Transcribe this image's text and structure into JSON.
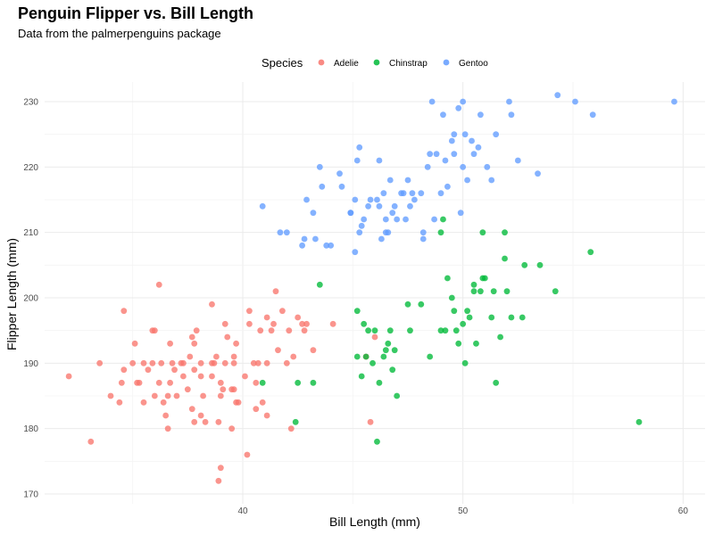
{
  "chart_data": {
    "type": "scatter",
    "title": "Penguin Flipper vs. Bill Length",
    "subtitle": "Data from the palmerpenguins package",
    "xlabel": "Bill Length (mm)",
    "ylabel": "Flipper Length (mm)",
    "xlim": [
      31,
      61
    ],
    "ylim": [
      168.5,
      233
    ],
    "x_ticks": [
      40,
      50,
      60
    ],
    "y_ticks": [
      170,
      180,
      190,
      200,
      210,
      220,
      230
    ],
    "grid": true,
    "legend": {
      "title": "Species",
      "position": "top"
    },
    "colors": {
      "Adelie": "#F8766D",
      "Chinstrap": "#00BA38",
      "Gentoo": "#619CFF"
    },
    "series": [
      {
        "name": "Adelie",
        "points": [
          [
            32.1,
            188
          ],
          [
            33.1,
            178
          ],
          [
            33.5,
            190
          ],
          [
            34.0,
            185
          ],
          [
            34.4,
            184
          ],
          [
            34.5,
            187
          ],
          [
            34.6,
            198
          ],
          [
            34.6,
            189
          ],
          [
            35.0,
            190
          ],
          [
            35.1,
            193
          ],
          [
            35.2,
            187
          ],
          [
            35.3,
            187
          ],
          [
            35.5,
            190
          ],
          [
            35.5,
            184
          ],
          [
            35.7,
            189
          ],
          [
            35.9,
            190
          ],
          [
            35.9,
            195
          ],
          [
            36.0,
            195
          ],
          [
            36.0,
            185
          ],
          [
            36.2,
            187
          ],
          [
            36.2,
            202
          ],
          [
            36.3,
            190
          ],
          [
            36.4,
            184
          ],
          [
            36.5,
            182
          ],
          [
            36.6,
            185
          ],
          [
            36.6,
            180
          ],
          [
            36.7,
            187
          ],
          [
            36.7,
            193
          ],
          [
            36.8,
            190
          ],
          [
            36.9,
            189
          ],
          [
            37.0,
            185
          ],
          [
            37.2,
            190
          ],
          [
            37.3,
            190
          ],
          [
            37.3,
            188
          ],
          [
            37.5,
            186
          ],
          [
            37.6,
            191
          ],
          [
            37.7,
            183
          ],
          [
            37.7,
            194
          ],
          [
            37.8,
            193
          ],
          [
            37.8,
            181
          ],
          [
            37.8,
            189
          ],
          [
            37.9,
            195
          ],
          [
            38.1,
            182
          ],
          [
            38.1,
            188
          ],
          [
            38.1,
            190
          ],
          [
            38.2,
            185
          ],
          [
            38.3,
            181
          ],
          [
            38.6,
            188
          ],
          [
            38.6,
            190
          ],
          [
            38.6,
            199
          ],
          [
            38.7,
            190
          ],
          [
            38.8,
            191
          ],
          [
            38.9,
            181
          ],
          [
            39.0,
            187
          ],
          [
            39.0,
            185
          ],
          [
            39.1,
            186
          ],
          [
            39.2,
            196
          ],
          [
            39.2,
            190
          ],
          [
            39.3,
            194
          ],
          [
            39.5,
            186
          ],
          [
            39.5,
            180
          ],
          [
            39.6,
            186
          ],
          [
            39.6,
            191
          ],
          [
            39.6,
            190
          ],
          [
            39.7,
            193
          ],
          [
            39.7,
            184
          ],
          [
            39.8,
            184
          ],
          [
            40.1,
            188
          ],
          [
            40.2,
            176
          ],
          [
            40.3,
            196
          ],
          [
            40.3,
            198
          ],
          [
            40.5,
            190
          ],
          [
            40.6,
            183
          ],
          [
            40.6,
            187
          ],
          [
            40.7,
            190
          ],
          [
            40.8,
            195
          ],
          [
            40.9,
            184
          ],
          [
            41.1,
            182
          ],
          [
            41.1,
            190
          ],
          [
            41.1,
            197
          ],
          [
            41.3,
            195
          ],
          [
            41.4,
            196
          ],
          [
            41.5,
            201
          ],
          [
            41.6,
            192
          ],
          [
            41.8,
            198
          ],
          [
            42.0,
            190
          ],
          [
            42.1,
            195
          ],
          [
            42.2,
            180
          ],
          [
            42.3,
            191
          ],
          [
            42.5,
            197
          ],
          [
            42.7,
            196
          ],
          [
            42.8,
            195
          ],
          [
            42.9,
            196
          ],
          [
            43.2,
            192
          ],
          [
            44.1,
            196
          ],
          [
            45.6,
            191
          ],
          [
            45.8,
            181
          ],
          [
            46.0,
            194
          ],
          [
            39.0,
            174
          ],
          [
            38.9,
            172
          ]
        ]
      },
      {
        "name": "Chinstrap",
        "points": [
          [
            40.9,
            187
          ],
          [
            42.4,
            181
          ],
          [
            42.5,
            187
          ],
          [
            43.2,
            187
          ],
          [
            43.5,
            202
          ],
          [
            45.2,
            198
          ],
          [
            45.2,
            191
          ],
          [
            45.4,
            188
          ],
          [
            45.5,
            196
          ],
          [
            45.6,
            191
          ],
          [
            45.7,
            195
          ],
          [
            45.9,
            190
          ],
          [
            46.0,
            195
          ],
          [
            46.1,
            178
          ],
          [
            46.2,
            187
          ],
          [
            46.4,
            191
          ],
          [
            46.5,
            192
          ],
          [
            46.6,
            193
          ],
          [
            46.7,
            195
          ],
          [
            46.8,
            189
          ],
          [
            46.9,
            192
          ],
          [
            47.0,
            185
          ],
          [
            47.5,
            199
          ],
          [
            47.6,
            195
          ],
          [
            48.1,
            199
          ],
          [
            48.5,
            191
          ],
          [
            49.0,
            195
          ],
          [
            49.2,
            195
          ],
          [
            49.3,
            203
          ],
          [
            49.5,
            200
          ],
          [
            49.6,
            198
          ],
          [
            49.7,
            195
          ],
          [
            50.0,
            196
          ],
          [
            50.1,
            190
          ],
          [
            50.2,
            198
          ],
          [
            50.3,
            197
          ],
          [
            50.5,
            201
          ],
          [
            50.6,
            193
          ],
          [
            50.8,
            201
          ],
          [
            50.9,
            203
          ],
          [
            51.0,
            203
          ],
          [
            51.3,
            197
          ],
          [
            51.4,
            201
          ],
          [
            51.5,
            187
          ],
          [
            51.7,
            194
          ],
          [
            51.9,
            206
          ],
          [
            52.0,
            201
          ],
          [
            52.2,
            197
          ],
          [
            52.7,
            197
          ],
          [
            52.8,
            205
          ],
          [
            53.5,
            205
          ],
          [
            54.2,
            201
          ],
          [
            55.8,
            207
          ],
          [
            58.0,
            181
          ],
          [
            50.9,
            210
          ],
          [
            51.9,
            210
          ],
          [
            49.1,
            212
          ],
          [
            49.0,
            210
          ],
          [
            50.5,
            202
          ],
          [
            49.8,
            193
          ]
        ]
      },
      {
        "name": "Gentoo",
        "points": [
          [
            40.9,
            214
          ],
          [
            41.7,
            210
          ],
          [
            42.0,
            210
          ],
          [
            42.7,
            208
          ],
          [
            42.8,
            209
          ],
          [
            42.9,
            215
          ],
          [
            43.2,
            213
          ],
          [
            43.3,
            209
          ],
          [
            43.5,
            220
          ],
          [
            43.6,
            217
          ],
          [
            43.8,
            208
          ],
          [
            44.0,
            208
          ],
          [
            44.4,
            219
          ],
          [
            44.5,
            217
          ],
          [
            44.9,
            213
          ],
          [
            45.1,
            215
          ],
          [
            45.2,
            221
          ],
          [
            45.3,
            210
          ],
          [
            45.4,
            211
          ],
          [
            45.5,
            212
          ],
          [
            45.7,
            214
          ],
          [
            45.8,
            215
          ],
          [
            46.1,
            215
          ],
          [
            46.2,
            214
          ],
          [
            46.3,
            209
          ],
          [
            46.4,
            216
          ],
          [
            46.5,
            210
          ],
          [
            46.7,
            218
          ],
          [
            46.8,
            213
          ],
          [
            46.9,
            214
          ],
          [
            47.0,
            212
          ],
          [
            47.2,
            216
          ],
          [
            47.4,
            212
          ],
          [
            47.5,
            218
          ],
          [
            47.6,
            214
          ],
          [
            47.7,
            216
          ],
          [
            47.8,
            215
          ],
          [
            48.1,
            216
          ],
          [
            48.2,
            209
          ],
          [
            48.4,
            220
          ],
          [
            48.5,
            222
          ],
          [
            48.6,
            230
          ],
          [
            48.7,
            212
          ],
          [
            48.8,
            222
          ],
          [
            49.0,
            216
          ],
          [
            49.1,
            228
          ],
          [
            49.2,
            221
          ],
          [
            49.3,
            217
          ],
          [
            49.5,
            224
          ],
          [
            49.6,
            225
          ],
          [
            49.8,
            229
          ],
          [
            49.9,
            213
          ],
          [
            50.0,
            220
          ],
          [
            50.1,
            225
          ],
          [
            50.2,
            218
          ],
          [
            50.4,
            224
          ],
          [
            50.5,
            222
          ],
          [
            50.7,
            223
          ],
          [
            50.8,
            228
          ],
          [
            51.1,
            220
          ],
          [
            51.3,
            218
          ],
          [
            51.5,
            225
          ],
          [
            52.1,
            230
          ],
          [
            52.2,
            228
          ],
          [
            52.5,
            221
          ],
          [
            53.4,
            219
          ],
          [
            54.3,
            231
          ],
          [
            55.1,
            230
          ],
          [
            55.9,
            228
          ],
          [
            59.6,
            230
          ],
          [
            45.1,
            207
          ],
          [
            46.5,
            212
          ],
          [
            48.2,
            210
          ],
          [
            47.3,
            216
          ],
          [
            44.9,
            213
          ],
          [
            46.6,
            210
          ],
          [
            49.6,
            222
          ],
          [
            45.3,
            223
          ],
          [
            46.2,
            221
          ],
          [
            50.0,
            230
          ]
        ]
      }
    ]
  }
}
